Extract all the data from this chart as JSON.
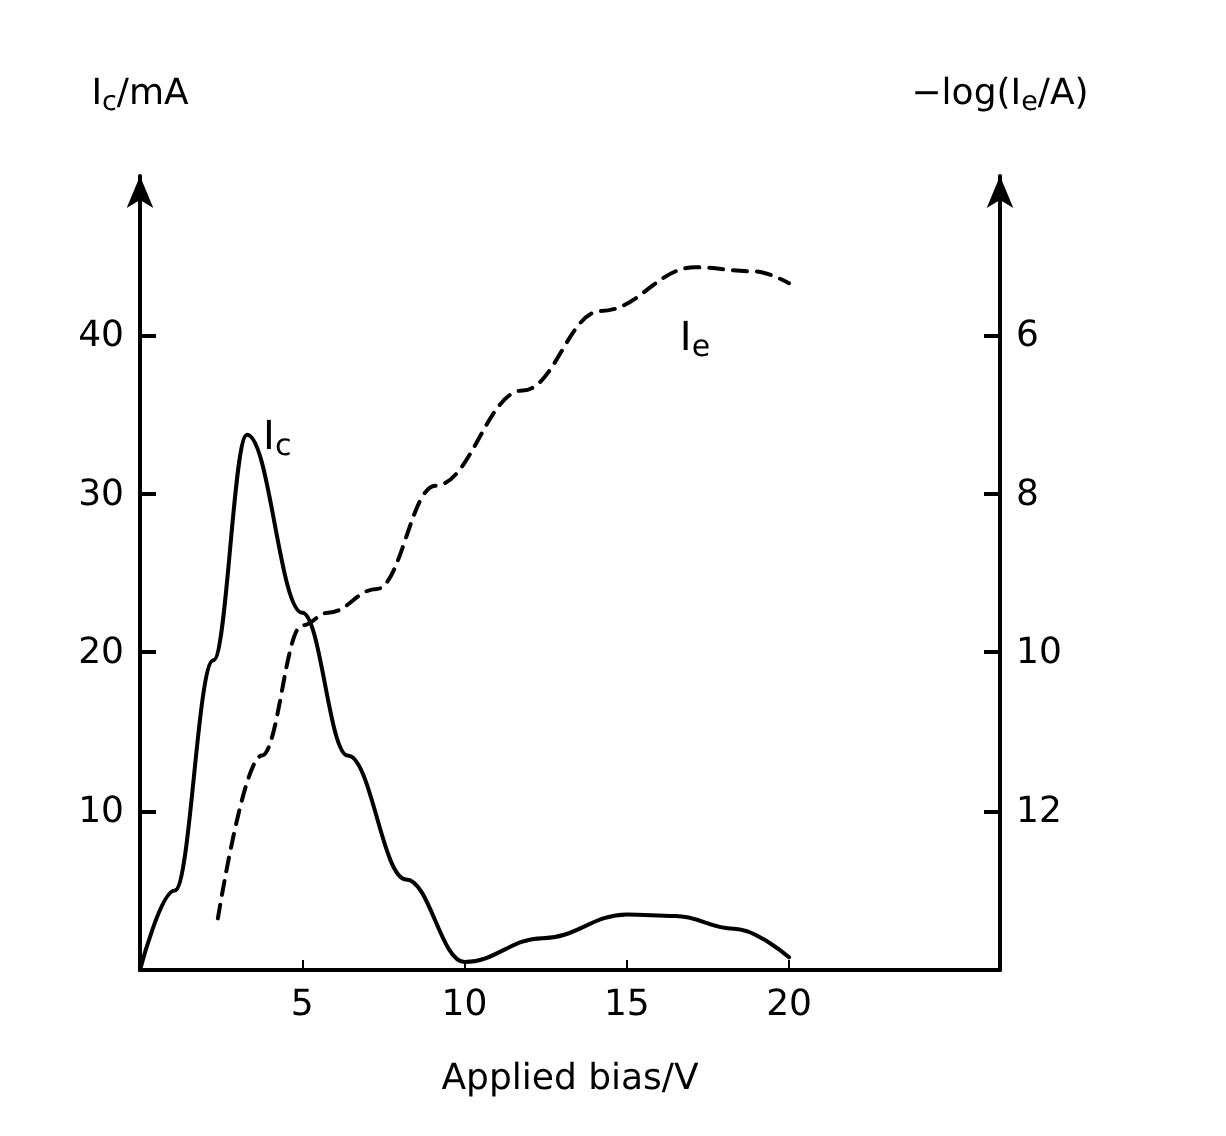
{
  "chart_data": {
    "type": "line",
    "xlabel": "Applied bias/V",
    "ylabel": "I$_{c}$/mA",
    "y2label": "−log(I$_{e}$/A)",
    "xlim": [
      0,
      26.5
    ],
    "xticks": [
      5,
      10,
      15,
      20
    ],
    "ylim": [
      0,
      50
    ],
    "yticks": [
      10,
      20,
      30,
      40
    ],
    "y2lim": [
      14,
      4
    ],
    "y2ticks": [
      6,
      8,
      10,
      12
    ],
    "grid": false,
    "marker": "none",
    "series": [
      {
        "name": "I$_{c}$",
        "color": "#000000",
        "line_style": "solid",
        "x": [
          0,
          1.07,
          2.26,
          3.3,
          5,
          6.4,
          8.2,
          10,
          12.4,
          15,
          16.5,
          18.3,
          20
        ],
        "values": [
          0,
          5,
          19.5,
          33.7,
          22.5,
          13.5,
          5.7,
          0.5,
          2,
          3.5,
          3.4,
          2.6,
          0.8
        ]
      },
      {
        "name": "I$_{e}$",
        "color": "#000000",
        "line_style": "dashed",
        "axis": "y2",
        "x": [
          2.4,
          3.75,
          5,
          5.8,
          7.3,
          9.1,
          11.8,
          14.2,
          17.1,
          18.9,
          20
        ],
        "values": [
          13.35,
          11.3,
          9.66,
          9.5,
          9.2,
          7.9,
          6.7,
          5.7,
          5.15,
          5.2,
          5.35
        ]
      }
    ]
  }
}
